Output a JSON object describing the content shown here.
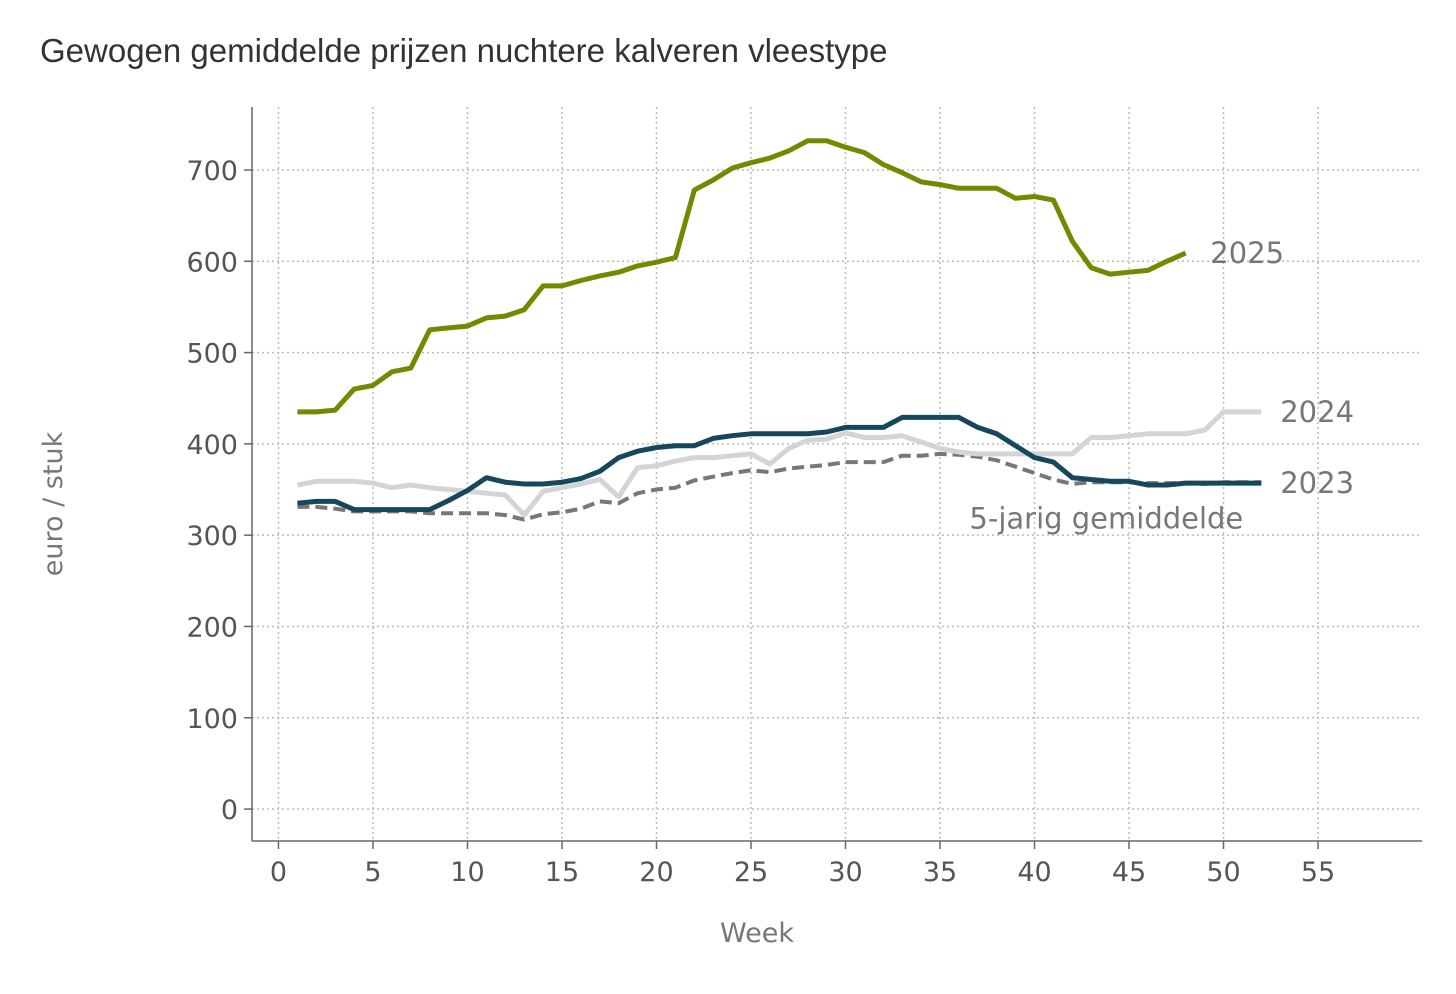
{
  "chart_data": {
    "type": "line",
    "title": "Gewogen gemiddelde prijzen nuchtere kalveren vleestype",
    "xlabel": "Week",
    "ylabel": "euro / stuk",
    "xlim": [
      -1.4,
      60.5
    ],
    "ylim": [
      -35,
      769
    ],
    "xticks": [
      0,
      5,
      10,
      15,
      20,
      25,
      30,
      35,
      40,
      45,
      50,
      55
    ],
    "yticks": [
      0,
      100,
      200,
      300,
      400,
      500,
      600,
      700
    ],
    "grid": true,
    "legend": "direct labels at line ends",
    "series": [
      {
        "name": "2025",
        "color": "#6f8c00",
        "dashed": false,
        "x": [
          1,
          2,
          3,
          4,
          5,
          6,
          7,
          8,
          9,
          10,
          11,
          12,
          13,
          14,
          15,
          16,
          17,
          18,
          19,
          20,
          21,
          22,
          23,
          24,
          25,
          26,
          27,
          28,
          29,
          30,
          31,
          32,
          33,
          34,
          35,
          36,
          37,
          38,
          39,
          40,
          41,
          42,
          43,
          44,
          45,
          46,
          47,
          48
        ],
        "values": [
          435,
          435,
          437,
          460,
          464,
          479,
          483,
          525,
          527,
          529,
          538,
          540,
          547,
          573,
          573,
          579,
          584,
          588,
          595,
          599,
          604,
          678,
          689,
          702,
          708,
          713,
          721,
          732,
          732,
          725,
          719,
          706,
          697,
          687,
          684,
          680,
          680,
          680,
          669,
          671,
          667,
          622,
          593,
          586,
          588,
          590,
          600,
          609
        ]
      },
      {
        "name": "2024",
        "color": "#d4d4d4",
        "dashed": false,
        "x": [
          1,
          2,
          3,
          4,
          5,
          6,
          7,
          8,
          9,
          10,
          11,
          12,
          13,
          14,
          15,
          16,
          17,
          18,
          19,
          20,
          21,
          22,
          23,
          24,
          25,
          26,
          27,
          28,
          29,
          30,
          31,
          32,
          33,
          34,
          35,
          36,
          37,
          38,
          39,
          40,
          41,
          42,
          43,
          44,
          45,
          46,
          47,
          48,
          49,
          50,
          51,
          52
        ],
        "values": [
          355,
          359,
          359,
          359,
          357,
          352,
          355,
          352,
          350,
          348,
          346,
          344,
          322,
          348,
          352,
          356,
          361,
          342,
          374,
          376,
          381,
          385,
          385,
          387,
          389,
          378,
          395,
          404,
          405,
          412,
          407,
          407,
          409,
          402,
          395,
          391,
          389,
          389,
          389,
          389,
          389,
          389,
          407,
          407,
          409,
          411,
          411,
          411,
          415,
          435,
          435,
          435
        ]
      },
      {
        "name": "2023",
        "color": "#16475c",
        "dashed": false,
        "x": [
          1,
          2,
          3,
          4,
          5,
          6,
          7,
          8,
          9,
          10,
          11,
          12,
          13,
          14,
          15,
          16,
          17,
          18,
          19,
          20,
          21,
          22,
          23,
          24,
          25,
          26,
          27,
          28,
          29,
          30,
          31,
          32,
          33,
          34,
          35,
          36,
          37,
          38,
          39,
          40,
          41,
          42,
          43,
          44,
          45,
          46,
          47,
          48,
          49,
          50,
          51,
          52
        ],
        "values": [
          335,
          337,
          337,
          328,
          328,
          328,
          328,
          328,
          338,
          349,
          363,
          358,
          356,
          356,
          358,
          362,
          370,
          385,
          392,
          396,
          398,
          398,
          406,
          409,
          411,
          411,
          411,
          411,
          413,
          418,
          418,
          418,
          429,
          429,
          429,
          429,
          418,
          411,
          398,
          385,
          380,
          363,
          361,
          359,
          359,
          355,
          355,
          357,
          357,
          357,
          357,
          357
        ]
      },
      {
        "name": "5-jarig gemiddelde",
        "color": "#777777",
        "dashed": true,
        "x": [
          1,
          2,
          3,
          4,
          5,
          6,
          7,
          8,
          9,
          10,
          11,
          12,
          13,
          14,
          15,
          16,
          17,
          18,
          19,
          20,
          21,
          22,
          23,
          24,
          25,
          26,
          27,
          28,
          29,
          30,
          31,
          32,
          33,
          34,
          35,
          36,
          37,
          38,
          39,
          40,
          41,
          42,
          43,
          44,
          45,
          46,
          47,
          48,
          49,
          50,
          51,
          52
        ],
        "values": [
          331,
          331,
          329,
          326,
          326,
          326,
          326,
          324,
          324,
          324,
          324,
          322,
          317,
          323,
          325,
          329,
          337,
          335,
          346,
          350,
          352,
          360,
          364,
          368,
          371,
          369,
          373,
          375,
          377,
          380,
          380,
          380,
          387,
          387,
          389,
          388,
          386,
          382,
          375,
          368,
          361,
          356,
          358,
          358,
          358,
          357,
          357,
          357,
          356,
          358,
          358,
          358
        ]
      }
    ]
  }
}
